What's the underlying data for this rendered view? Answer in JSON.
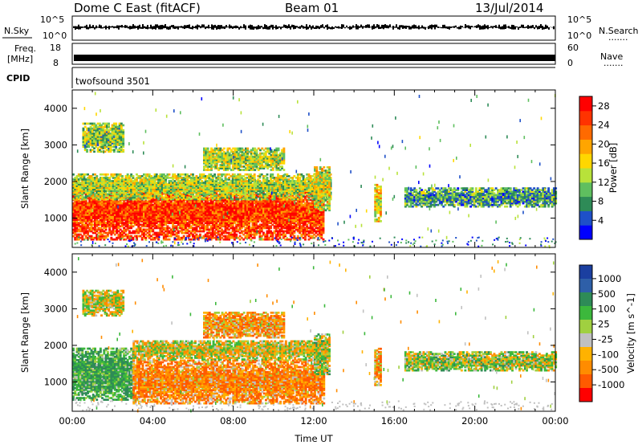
{
  "header": {
    "title": "Dome C East (fitACF)",
    "beam": "Beam 01",
    "date": "13/Jul/2014"
  },
  "side_labels": {
    "nsky": "N.Sky",
    "freq_line1": "Freq.",
    "freq_line2": "[MHz]",
    "cpid": "CPID",
    "nsearch": "N.Search",
    "nave": "Nave",
    "dots": "......."
  },
  "strip_panels": {
    "noise": {
      "left_ticks": [
        "10^5",
        "10^0"
      ],
      "right_ticks": [
        "10^5",
        "10^0"
      ]
    },
    "freq": {
      "left_ticks": [
        "18",
        "8"
      ],
      "right_ticks": [
        "60",
        "0"
      ]
    },
    "cpid_text": "twofsound 3501"
  },
  "colors": {
    "power_scale": [
      "#0000ff",
      "#1e50c8",
      "#2e8b57",
      "#5fbf5f",
      "#b8e23a",
      "#ffd700",
      "#ffa500",
      "#ff6a00",
      "#ff3300",
      "#ff0000"
    ],
    "velocity_scale": [
      "#ff0000",
      "#ff5a00",
      "#ff8c00",
      "#ffb200",
      "#c0c0c0",
      "#a0d040",
      "#3cb83c",
      "#2e8b57",
      "#2e5fa8",
      "#1b3fa0"
    ]
  },
  "chart_data": [
    {
      "type": "heatmap",
      "panel": "power",
      "x_ticks": [
        "00:00",
        "04:00",
        "08:00",
        "12:00",
        "16:00",
        "20:00",
        "00:00"
      ],
      "xlim_hours": [
        0,
        24
      ],
      "ylabel": "Slant Range [km]",
      "ylim": [
        200,
        4500
      ],
      "y_ticks": [
        "1000",
        "2000",
        "3000",
        "4000"
      ],
      "colorbar_label": "Power [dB]",
      "colorbar_ticks": [
        "4",
        "8",
        "12",
        "16",
        "20",
        "24",
        "28"
      ],
      "colorbar_range": [
        0,
        30
      ],
      "regions": [
        {
          "t0": 0,
          "t1": 12.5,
          "r0": 400,
          "r1": 1900,
          "level": 0.85,
          "desc": "strong band"
        },
        {
          "t0": 0,
          "t1": 12.8,
          "r0": 1500,
          "r1": 2200,
          "level": 0.45
        },
        {
          "t0": 12.0,
          "t1": 12.8,
          "r0": 1200,
          "r1": 2400,
          "level": 0.5
        },
        {
          "t0": 0.5,
          "t1": 2.5,
          "r0": 2800,
          "r1": 3600,
          "level": 0.4
        },
        {
          "t0": 6.5,
          "t1": 10.5,
          "r0": 2300,
          "r1": 2900,
          "level": 0.45
        },
        {
          "t0": 16.5,
          "t1": 24,
          "r0": 1300,
          "r1": 1800,
          "level": 0.3
        },
        {
          "t0": 15.0,
          "t1": 15.3,
          "r0": 900,
          "r1": 1900,
          "level": 0.55
        }
      ]
    },
    {
      "type": "heatmap",
      "panel": "velocity",
      "x_ticks": [
        "00:00",
        "04:00",
        "08:00",
        "12:00",
        "16:00",
        "20:00",
        "00:00"
      ],
      "xlim_hours": [
        0,
        24
      ],
      "xlabel": "Time UT",
      "ylabel": "Slant Range [km]",
      "ylim": [
        200,
        4500
      ],
      "y_ticks": [
        "1000",
        "2000",
        "3000",
        "4000"
      ],
      "colorbar_label": "Velocity [m s^-1]",
      "colorbar_ticks": [
        "1000",
        "500",
        "100",
        "25",
        "-25",
        "-100",
        "-500",
        "-1000"
      ],
      "regions": [
        {
          "t0": 0,
          "t1": 3.0,
          "r0": 500,
          "r1": 1900,
          "vel": 250
        },
        {
          "t0": 3.0,
          "t1": 12.5,
          "r0": 400,
          "r1": 1600,
          "vel": -200
        },
        {
          "t0": 3.0,
          "t1": 12.5,
          "r0": 1600,
          "r1": 2100,
          "vel": 0
        },
        {
          "t0": 12.0,
          "t1": 12.8,
          "r0": 1200,
          "r1": 2300,
          "vel": 50
        },
        {
          "t0": 0.5,
          "t1": 2.5,
          "r0": 2800,
          "r1": 3500,
          "vel": 0
        },
        {
          "t0": 6.5,
          "t1": 10.5,
          "r0": 2200,
          "r1": 2900,
          "vel": -150
        },
        {
          "t0": 16.5,
          "t1": 24,
          "r0": 1300,
          "r1": 1800,
          "vel": 80
        },
        {
          "t0": 15.0,
          "t1": 15.3,
          "r0": 900,
          "r1": 1900,
          "vel": -150
        }
      ]
    }
  ]
}
